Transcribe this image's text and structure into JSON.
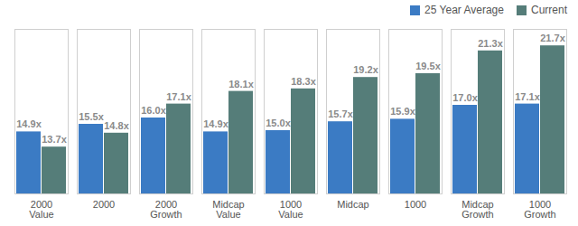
{
  "chart_data": {
    "type": "bar",
    "categories": [
      "2000\nValue",
      "2000",
      "2000\nGrowth",
      "Midcap\nValue",
      "1000\nValue",
      "Midcap",
      "1000",
      "Midcap\nGrowth",
      "1000\nGrowth"
    ],
    "series": [
      {
        "name": "25 Year Average",
        "color": "#3b7bc4",
        "values": [
          14.9,
          15.5,
          16.0,
          14.9,
          15.0,
          15.7,
          15.9,
          17.0,
          17.1
        ],
        "value_labels": [
          "14.9x",
          "15.5x",
          "16.0x",
          "14.9x",
          "15.0x",
          "15.7x",
          "15.9x",
          "17.0x",
          "17.1x"
        ]
      },
      {
        "name": "Current",
        "color": "#557d79",
        "values": [
          13.7,
          14.8,
          17.1,
          18.1,
          18.3,
          19.2,
          19.5,
          21.3,
          21.7
        ],
        "value_labels": [
          "13.7x",
          "14.8x",
          "17.1x",
          "18.1x",
          "18.3x",
          "19.2x",
          "19.5x",
          "21.3x",
          "21.7x"
        ]
      }
    ],
    "ylim": [
      10,
      23
    ],
    "grid": false,
    "data_labels": true,
    "legend": "top-right",
    "tick_labels": "x"
  }
}
